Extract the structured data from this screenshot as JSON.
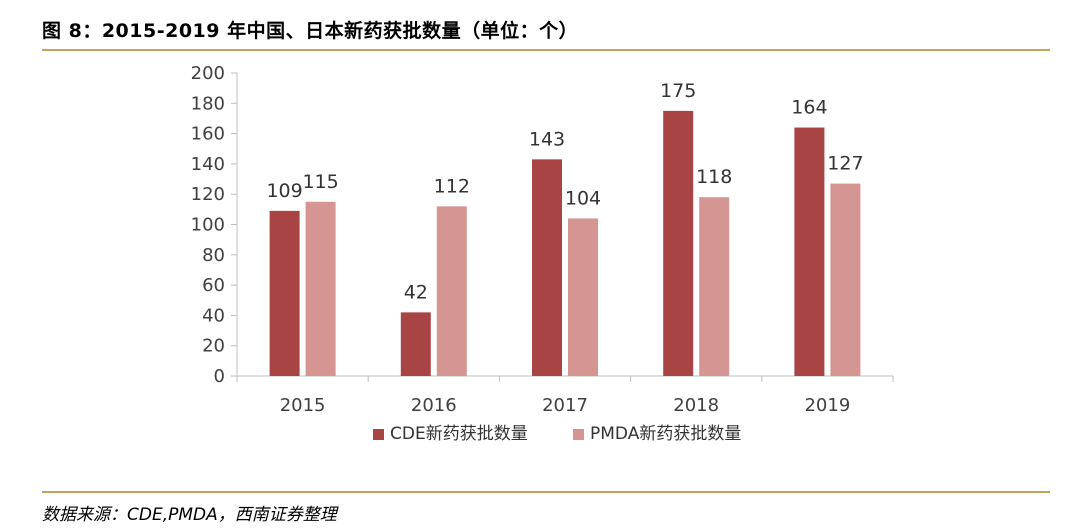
{
  "header": {
    "title": "图 8：2015-2019 年中国、日本新药获批数量（单位：个）"
  },
  "footer": {
    "source": "数据来源：CDE,PMDA，西南证券整理"
  },
  "chart_data": {
    "type": "bar",
    "categories": [
      "2015",
      "2016",
      "2017",
      "2018",
      "2019"
    ],
    "series": [
      {
        "name": "CDE新药获批数量",
        "values": [
          109,
          42,
          143,
          175,
          164
        ],
        "color": "#a84444"
      },
      {
        "name": "PMDA新药获批数量",
        "values": [
          115,
          112,
          104,
          118,
          127
        ],
        "color": "#d59592"
      }
    ],
    "yticks": [
      "0",
      "20",
      "40",
      "60",
      "80",
      "100",
      "120",
      "140",
      "160",
      "180",
      "200"
    ],
    "ylim": [
      0,
      200
    ],
    "grid": false,
    "legend": "bottom"
  }
}
